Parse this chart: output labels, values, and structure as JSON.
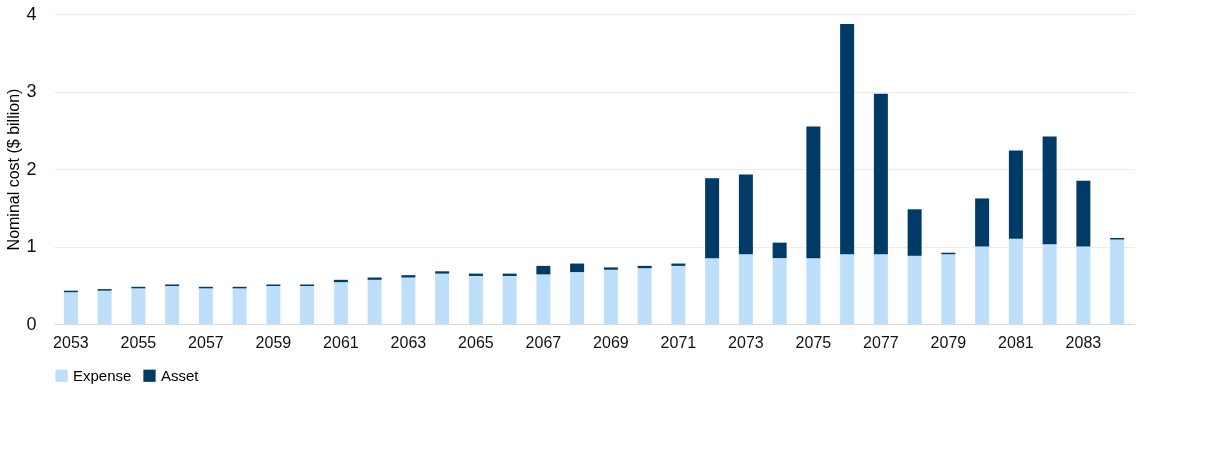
{
  "chart_data": {
    "type": "bar",
    "stacked": true,
    "ylabel": "Nominal cost ($ billion)",
    "categories": [
      "2053",
      null,
      "2055",
      null,
      "2057",
      null,
      "2059",
      null,
      "2061",
      null,
      "2063",
      null,
      "2065",
      null,
      "2067",
      null,
      "2069",
      null,
      "2071",
      null,
      "2073",
      null,
      "2075",
      null,
      "2077",
      null,
      "2079",
      null,
      "2081",
      null,
      "2083",
      null
    ],
    "series": [
      {
        "name": "Expense",
        "color": "#bddff9",
        "values": [
          0.41,
          0.43,
          0.46,
          0.49,
          0.46,
          0.46,
          0.49,
          0.49,
          0.54,
          0.57,
          0.6,
          0.65,
          0.62,
          0.62,
          0.64,
          0.67,
          0.7,
          0.72,
          0.75,
          0.85,
          0.9,
          0.85,
          0.85,
          0.9,
          0.9,
          0.88,
          0.9,
          1.0,
          1.1,
          1.03,
          1.0,
          1.09
        ]
      },
      {
        "name": "Asset",
        "color": "#003a66",
        "values": [
          0.02,
          0.02,
          0.02,
          0.02,
          0.02,
          0.02,
          0.02,
          0.02,
          0.03,
          0.03,
          0.03,
          0.03,
          0.03,
          0.03,
          0.11,
          0.11,
          0.03,
          0.03,
          0.03,
          1.03,
          1.03,
          0.2,
          1.7,
          2.97,
          2.07,
          0.6,
          0.02,
          0.62,
          1.14,
          1.39,
          0.85,
          0.02
        ]
      }
    ],
    "ylim": [
      0,
      4
    ],
    "yticks": [
      0,
      1,
      2,
      3,
      4
    ],
    "grid": "y",
    "legend": "bottom"
  }
}
